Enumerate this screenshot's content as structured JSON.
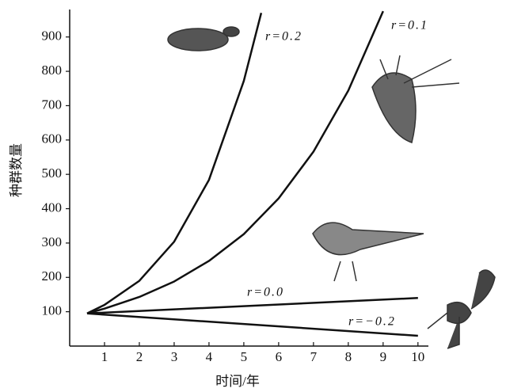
{
  "chart_data": {
    "type": "line",
    "x_label": "时间/年",
    "y_label": "种群数量",
    "xlim": [
      0,
      10.3
    ],
    "xticks": [
      1,
      2,
      3,
      4,
      5,
      6,
      7,
      8,
      9,
      10
    ],
    "ylim": [
      0,
      980
    ],
    "yticks": [
      100,
      200,
      300,
      400,
      500,
      600,
      700,
      800,
      900
    ],
    "color": "#111111",
    "series": [
      {
        "name": "r=0.2",
        "x": [
          0.5,
          1,
          2,
          3,
          4,
          5,
          5.5
        ],
        "values": [
          95,
          120,
          190,
          304,
          484,
          772,
          970
        ]
      },
      {
        "name": "r=0.1",
        "x": [
          0.5,
          1,
          2,
          3,
          4,
          5,
          6,
          7,
          8,
          9
        ],
        "values": [
          95,
          109,
          143,
          188,
          248,
          326,
          430,
          566,
          744,
          975
        ]
      },
      {
        "name": "r=0.0",
        "x": [
          0.5,
          10
        ],
        "values": [
          95,
          140
        ]
      },
      {
        "name": "r=−0.2",
        "x": [
          0.5,
          10
        ],
        "values": [
          95,
          30
        ]
      }
    ]
  }
}
